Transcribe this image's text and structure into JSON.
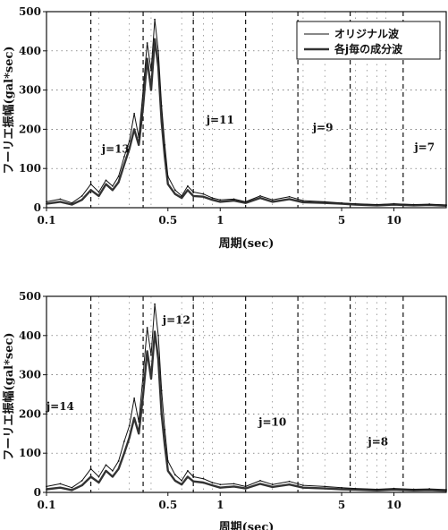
{
  "chart_data": [
    {
      "type": "line",
      "xscale": "log",
      "xlim": [
        0.1,
        20
      ],
      "ylim": [
        0,
        500
      ],
      "xlabel": "周期(sec)",
      "ylabel": "フーリエ振幅(gal*sec)",
      "xticks": [
        0.1,
        0.5,
        1,
        5,
        10
      ],
      "xtick_labels": [
        "0.1",
        "0.5",
        "1",
        "5",
        "10"
      ],
      "yticks": [
        0,
        100,
        200,
        300,
        400,
        500
      ],
      "ytick_labels": [
        "0",
        "100",
        "200",
        "300",
        "400",
        "500"
      ],
      "grid": true,
      "legend_placement": "top-right",
      "legend": [
        "オリジナル波",
        "各j毎の成分波"
      ],
      "band_boundaries": [
        0.18,
        0.36,
        0.7,
        1.4,
        2.8,
        5.6,
        11.3
      ],
      "annotations": [
        {
          "text": "j=13",
          "x": 0.25,
          "y": 140
        },
        {
          "text": "j=11",
          "x": 1.0,
          "y": 215
        },
        {
          "text": "j=9",
          "x": 3.9,
          "y": 195
        },
        {
          "text": "j=7",
          "x": 15.0,
          "y": 145
        }
      ],
      "series": [
        {
          "x": [
            0.1,
            0.12,
            0.14,
            0.16,
            0.18,
            0.2,
            0.22,
            0.24,
            0.26,
            0.28,
            0.3,
            0.32,
            0.34,
            0.36,
            0.38,
            0.4,
            0.42,
            0.44,
            0.46,
            0.48,
            0.5,
            0.55,
            0.6,
            0.65,
            0.7,
            0.8,
            0.9,
            1.0,
            1.2,
            1.4,
            1.7,
            2.0,
            2.5,
            3.0,
            4.0,
            5.0,
            6.0,
            8.0,
            10.0,
            13.0,
            16.0,
            20.0
          ],
          "values": [
            15,
            22,
            12,
            30,
            60,
            40,
            70,
            55,
            80,
            130,
            170,
            240,
            180,
            300,
            420,
            350,
            480,
            400,
            260,
            160,
            80,
            45,
            30,
            55,
            40,
            35,
            25,
            20,
            22,
            15,
            30,
            20,
            28,
            18,
            15,
            12,
            10,
            8,
            10,
            8,
            9,
            7
          ]
        },
        {
          "x": [
            0.1,
            0.12,
            0.14,
            0.16,
            0.18,
            0.2,
            0.22,
            0.24,
            0.26,
            0.28,
            0.3,
            0.32,
            0.34,
            0.36,
            0.38,
            0.4,
            0.42,
            0.44,
            0.46,
            0.48,
            0.5,
            0.55,
            0.6,
            0.65,
            0.7,
            0.8,
            0.9,
            1.0,
            1.2,
            1.4,
            1.7,
            2.0,
            2.5,
            3.0,
            4.0,
            5.0,
            6.0,
            8.0,
            10.0,
            13.0,
            16.0,
            20.0
          ],
          "values": [
            10,
            15,
            8,
            20,
            45,
            30,
            60,
            45,
            65,
            110,
            150,
            200,
            160,
            260,
            380,
            300,
            430,
            360,
            220,
            130,
            60,
            35,
            25,
            45,
            30,
            28,
            20,
            15,
            18,
            12,
            25,
            15,
            22,
            14,
            12,
            10,
            8,
            6,
            8,
            6,
            7,
            5
          ]
        }
      ]
    },
    {
      "type": "line",
      "xscale": "log",
      "xlim": [
        0.1,
        20
      ],
      "ylim": [
        0,
        500
      ],
      "xlabel": "周期(sec)",
      "ylabel": "フーリエ振幅(gal*sec)",
      "xticks": [
        0.1,
        0.5,
        1,
        5,
        10
      ],
      "xtick_labels": [
        "0.1",
        "0.5",
        "1",
        "5",
        "10"
      ],
      "yticks": [
        0,
        100,
        200,
        300,
        400,
        500
      ],
      "ytick_labels": [
        "0",
        "100",
        "200",
        "300",
        "400",
        "500"
      ],
      "grid": true,
      "band_boundaries": [
        0.18,
        0.36,
        0.7,
        1.4,
        2.8,
        5.6,
        11.3
      ],
      "annotations": [
        {
          "text": "j=14",
          "x": 0.12,
          "y": 210
        },
        {
          "text": "j=12",
          "x": 0.56,
          "y": 430
        },
        {
          "text": "j=10",
          "x": 2.0,
          "y": 170
        },
        {
          "text": "j=8",
          "x": 8.1,
          "y": 120
        }
      ],
      "series": [
        {
          "x": [
            0.1,
            0.12,
            0.14,
            0.16,
            0.18,
            0.2,
            0.22,
            0.24,
            0.26,
            0.28,
            0.3,
            0.32,
            0.34,
            0.36,
            0.38,
            0.4,
            0.42,
            0.44,
            0.46,
            0.48,
            0.5,
            0.55,
            0.6,
            0.65,
            0.7,
            0.8,
            0.9,
            1.0,
            1.2,
            1.4,
            1.7,
            2.0,
            2.5,
            3.0,
            4.0,
            5.0,
            6.0,
            8.0,
            10.0,
            13.0,
            16.0,
            20.0
          ],
          "values": [
            15,
            22,
            12,
            30,
            60,
            40,
            70,
            55,
            80,
            130,
            170,
            240,
            180,
            300,
            420,
            350,
            480,
            400,
            260,
            160,
            80,
            45,
            30,
            55,
            40,
            35,
            25,
            20,
            22,
            15,
            30,
            20,
            28,
            18,
            15,
            12,
            10,
            8,
            10,
            8,
            9,
            7
          ]
        },
        {
          "x": [
            0.1,
            0.12,
            0.14,
            0.16,
            0.18,
            0.2,
            0.22,
            0.24,
            0.26,
            0.28,
            0.3,
            0.32,
            0.34,
            0.36,
            0.38,
            0.4,
            0.42,
            0.44,
            0.46,
            0.48,
            0.5,
            0.55,
            0.6,
            0.65,
            0.7,
            0.8,
            0.9,
            1.0,
            1.2,
            1.4,
            1.7,
            2.0,
            2.5,
            3.0,
            4.0,
            5.0,
            6.0,
            8.0,
            10.0,
            13.0,
            16.0,
            20.0
          ],
          "values": [
            8,
            12,
            6,
            18,
            40,
            25,
            55,
            40,
            60,
            100,
            140,
            190,
            150,
            250,
            360,
            290,
            410,
            340,
            200,
            120,
            55,
            30,
            20,
            40,
            28,
            25,
            18,
            12,
            15,
            10,
            22,
            14,
            20,
            12,
            10,
            8,
            7,
            5,
            7,
            5,
            6,
            4
          ]
        }
      ]
    }
  ]
}
